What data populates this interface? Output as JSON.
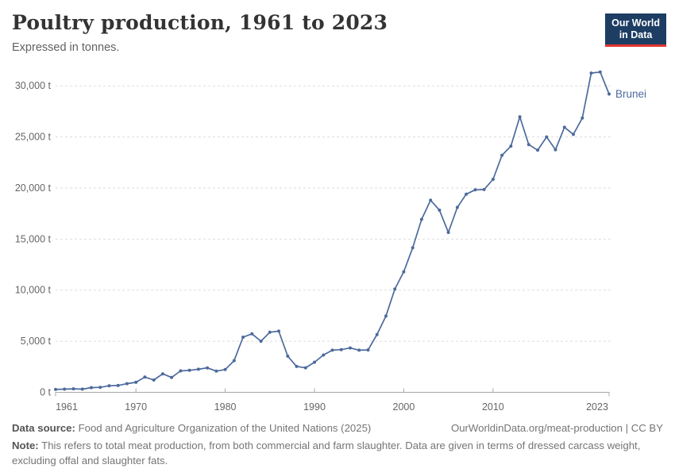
{
  "header": {
    "title": "Poultry production, 1961 to 2023",
    "subtitle": "Expressed in tonnes.",
    "logo": {
      "line1": "Our World",
      "line2": "in Data"
    }
  },
  "chart_data": {
    "type": "line",
    "title": "Poultry production, 1961 to 2023",
    "unit": "tonnes",
    "entity": "Brunei",
    "xlabel": "",
    "ylabel": "",
    "ylim": [
      0,
      30000
    ],
    "xlim": [
      1961,
      2023
    ],
    "grid": true,
    "legend_position": "end-of-line-label",
    "yticks": [
      {
        "v": 0,
        "label": "0 t"
      },
      {
        "v": 5000,
        "label": "5,000 t"
      },
      {
        "v": 10000,
        "label": "10,000 t"
      },
      {
        "v": 15000,
        "label": "15,000 t"
      },
      {
        "v": 20000,
        "label": "20,000 t"
      },
      {
        "v": 25000,
        "label": "25,000 t"
      },
      {
        "v": 30000,
        "label": "30,000 t"
      }
    ],
    "xticks": [
      {
        "v": 1961,
        "label": "1961"
      },
      {
        "v": 1970,
        "label": "1970"
      },
      {
        "v": 1980,
        "label": "1980"
      },
      {
        "v": 1990,
        "label": "1990"
      },
      {
        "v": 2000,
        "label": "2000"
      },
      {
        "v": 2010,
        "label": "2010"
      },
      {
        "v": 2023,
        "label": "2023"
      }
    ],
    "x": [
      1961,
      1962,
      1963,
      1964,
      1965,
      1966,
      1967,
      1968,
      1969,
      1970,
      1971,
      1972,
      1973,
      1974,
      1975,
      1976,
      1977,
      1978,
      1979,
      1980,
      1981,
      1982,
      1983,
      1984,
      1985,
      1986,
      1987,
      1988,
      1989,
      1990,
      1991,
      1992,
      1993,
      1994,
      1995,
      1996,
      1997,
      1998,
      1999,
      2000,
      2001,
      2002,
      2003,
      2004,
      2005,
      2006,
      2007,
      2008,
      2009,
      2010,
      2011,
      2012,
      2013,
      2014,
      2015,
      2016,
      2017,
      2018,
      2019,
      2020,
      2021,
      2022,
      2023
    ],
    "series": [
      {
        "name": "Brunei",
        "values": [
          280,
          310,
          340,
          310,
          460,
          490,
          640,
          670,
          850,
          980,
          1490,
          1200,
          1810,
          1450,
          2100,
          2150,
          2260,
          2390,
          2070,
          2230,
          3100,
          5400,
          5720,
          5000,
          5880,
          5990,
          3540,
          2530,
          2400,
          2940,
          3650,
          4120,
          4180,
          4340,
          4120,
          4150,
          5650,
          7460,
          10100,
          11800,
          14150,
          16930,
          18800,
          17830,
          15650,
          18100,
          19400,
          19820,
          19850,
          20850,
          23200,
          24100,
          26970,
          24250,
          23700,
          25000,
          23750,
          25950,
          25250,
          26850,
          31250,
          31350,
          29200
        ]
      }
    ]
  },
  "footer": {
    "datasource_label": "Data source:",
    "datasource_text": "Food and Agriculture Organization of the United Nations (2025)",
    "link_text": "OurWorldinData.org/meat-production | CC BY",
    "note_label": "Note:",
    "note_text": "This refers to total meat production, from both commercial and farm slaughter. Data are given in terms of dressed carcass weight, excluding offal and slaughter fats."
  },
  "colors": {
    "line": "#4C6A9C",
    "grid": "#dddddd",
    "axis": "#a7a7a7",
    "tick_label": "#666666",
    "title": "#333333",
    "subtitle": "#616161",
    "footer_text": "#757575",
    "footer_bold": "#555555",
    "logo_bg": "#1d3d63",
    "logo_accent": "#e0362e"
  }
}
